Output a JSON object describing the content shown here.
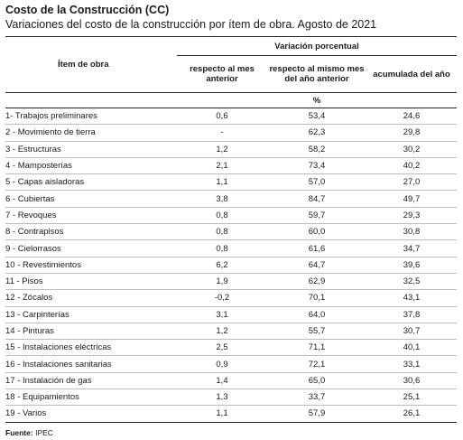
{
  "title": "Costo de la Construcción (CC)",
  "subtitle": "Variaciones del costo de la construcción por ítem de obra. Agosto de 2021",
  "table": {
    "item_header": "Ítem de obra",
    "group_header": "Variación porcentual",
    "col_headers": [
      "respecto al mes anterior",
      "respecto al mismo mes del año anterior",
      "acumulada del año"
    ],
    "unit": "%",
    "rows": [
      {
        "item": "1- Trabajos preliminares",
        "mes": "0,6",
        "anual": "53,4",
        "acum": "24,6"
      },
      {
        "item": "2 - Movimiento de tierra",
        "mes": "-",
        "anual": "62,3",
        "acum": "29,8"
      },
      {
        "item": "3 - Estructuras",
        "mes": "1,2",
        "anual": "58,2",
        "acum": "30,2"
      },
      {
        "item": "4 - Mamposterías",
        "mes": "2,1",
        "anual": "73,4",
        "acum": "40,2"
      },
      {
        "item": "5 - Capas aisladoras",
        "mes": "1,1",
        "anual": "57,0",
        "acum": "27,0"
      },
      {
        "item": "6 - Cubiertas",
        "mes": "3,8",
        "anual": "84,7",
        "acum": "49,7"
      },
      {
        "item": "7 - Revoques",
        "mes": "0,8",
        "anual": "59,7",
        "acum": "29,3"
      },
      {
        "item": "8 - Contrapisos",
        "mes": "0,8",
        "anual": "60,0",
        "acum": "30,8"
      },
      {
        "item": "9 - Cielorrasos",
        "mes": "0,8",
        "anual": "61,6",
        "acum": "34,7"
      },
      {
        "item": "10 - Revestimientos",
        "mes": "6,2",
        "anual": "64,7",
        "acum": "39,6"
      },
      {
        "item": "11 - Pisos",
        "mes": "1,9",
        "anual": "62,9",
        "acum": "32,5"
      },
      {
        "item": "12 - Zócalos",
        "mes": "-0,2",
        "anual": "70,1",
        "acum": "43,1"
      },
      {
        "item": "13 - Carpinterías",
        "mes": "3,1",
        "anual": "64,0",
        "acum": "37,8"
      },
      {
        "item": "14 - Pinturas",
        "mes": "1,2",
        "anual": "55,7",
        "acum": "30,7"
      },
      {
        "item": "15 - Instalaciones eléctricas",
        "mes": "2,5",
        "anual": "71,1",
        "acum": "40,1"
      },
      {
        "item": "16 - Instalaciones sanitarias",
        "mes": "0,9",
        "anual": "72,1",
        "acum": "33,1"
      },
      {
        "item": "17 - Instalación de gas",
        "mes": "1,4",
        "anual": "65,0",
        "acum": "30,6"
      },
      {
        "item": "18 - Equipamientos",
        "mes": "1,3",
        "anual": "33,7",
        "acum": "25,1"
      },
      {
        "item": "19 - Varios",
        "mes": "1,1",
        "anual": "57,9",
        "acum": "26,1"
      }
    ]
  },
  "source": {
    "label": "Fuente:",
    "value": "IPEC"
  }
}
